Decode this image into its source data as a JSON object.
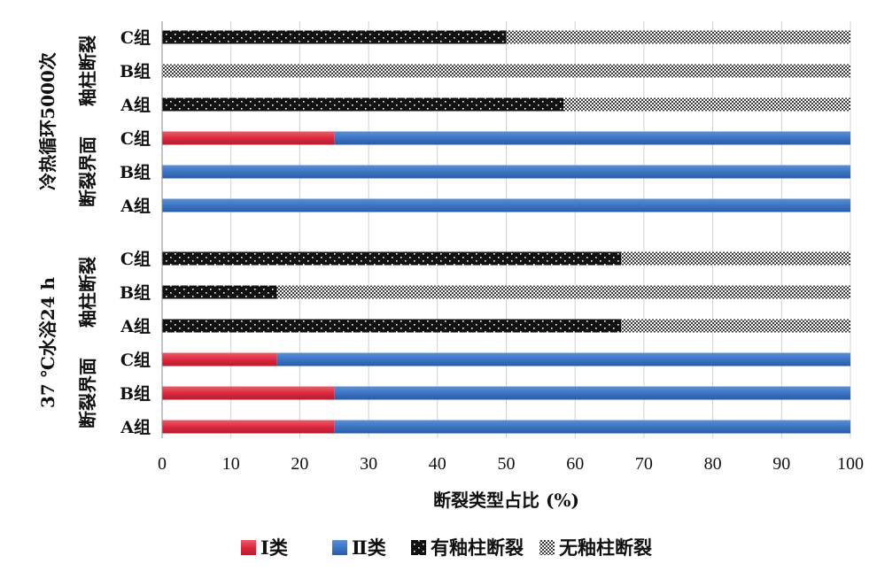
{
  "chart_data": {
    "type": "bar",
    "orientation": "horizontal",
    "stacked": true,
    "xlabel": "断裂类型占比 (%)",
    "xlim": [
      0,
      100
    ],
    "xticks": [
      0,
      10,
      20,
      30,
      40,
      50,
      60,
      70,
      80,
      90,
      100
    ],
    "grid": true,
    "legend_position": "bottom",
    "colors": {
      "type_i": "#e2334a",
      "type_ii": "#3b74c2",
      "with_post": "#111111",
      "without_post": "#8c8c8c"
    },
    "series": [
      {
        "key": "type_i",
        "name": "Ⅰ类",
        "pattern": "solid-red"
      },
      {
        "key": "type_ii",
        "name": "Ⅱ类",
        "pattern": "solid-blue"
      },
      {
        "key": "with_post",
        "name": "有釉柱断裂",
        "pattern": "black-dots"
      },
      {
        "key": "without_post",
        "name": "无釉柱断裂",
        "pattern": "gray-checker"
      }
    ],
    "outer_groups": [
      {
        "label": "冷热循环5000次",
        "subgroups": [
          {
            "label": "釉柱断裂",
            "bars": [
              {
                "category": "C组",
                "segments": [
                  {
                    "series": "with_post",
                    "value": 50
                  },
                  {
                    "series": "without_post",
                    "value": 50
                  }
                ]
              },
              {
                "category": "B组",
                "segments": [
                  {
                    "series": "with_post",
                    "value": 0
                  },
                  {
                    "series": "without_post",
                    "value": 100
                  }
                ]
              },
              {
                "category": "A组",
                "segments": [
                  {
                    "series": "with_post",
                    "value": 58.3
                  },
                  {
                    "series": "without_post",
                    "value": 41.7
                  }
                ]
              }
            ]
          },
          {
            "label": "断裂界面",
            "bars": [
              {
                "category": "C组",
                "segments": [
                  {
                    "series": "type_i",
                    "value": 25
                  },
                  {
                    "series": "type_ii",
                    "value": 75
                  }
                ]
              },
              {
                "category": "B组",
                "segments": [
                  {
                    "series": "type_i",
                    "value": 0
                  },
                  {
                    "series": "type_ii",
                    "value": 100
                  }
                ]
              },
              {
                "category": "A组",
                "segments": [
                  {
                    "series": "type_i",
                    "value": 0
                  },
                  {
                    "series": "type_ii",
                    "value": 100
                  }
                ]
              }
            ]
          }
        ]
      },
      {
        "label": "37 ℃水浴24 h",
        "subgroups": [
          {
            "label": "釉柱断裂",
            "bars": [
              {
                "category": "C组",
                "segments": [
                  {
                    "series": "with_post",
                    "value": 66.7
                  },
                  {
                    "series": "without_post",
                    "value": 33.3
                  }
                ]
              },
              {
                "category": "B组",
                "segments": [
                  {
                    "series": "with_post",
                    "value": 16.7
                  },
                  {
                    "series": "without_post",
                    "value": 83.3
                  }
                ]
              },
              {
                "category": "A组",
                "segments": [
                  {
                    "series": "with_post",
                    "value": 66.7
                  },
                  {
                    "series": "without_post",
                    "value": 33.3
                  }
                ]
              }
            ]
          },
          {
            "label": "断裂界面",
            "bars": [
              {
                "category": "C组",
                "segments": [
                  {
                    "series": "type_i",
                    "value": 16.7
                  },
                  {
                    "series": "type_ii",
                    "value": 83.3
                  }
                ]
              },
              {
                "category": "B组",
                "segments": [
                  {
                    "series": "type_i",
                    "value": 25
                  },
                  {
                    "series": "type_ii",
                    "value": 75
                  }
                ]
              },
              {
                "category": "A组",
                "segments": [
                  {
                    "series": "type_i",
                    "value": 25
                  },
                  {
                    "series": "type_ii",
                    "value": 75
                  }
                ]
              }
            ]
          }
        ]
      }
    ]
  }
}
